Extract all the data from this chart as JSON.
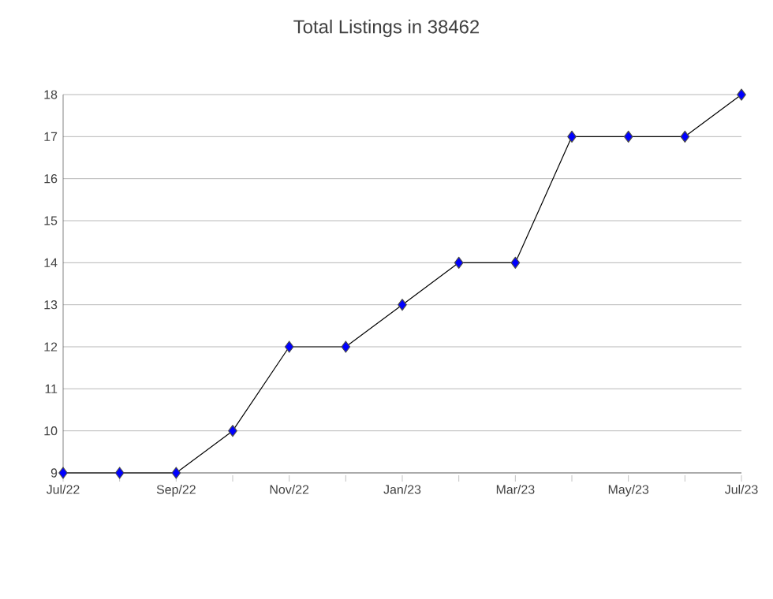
{
  "chart_data": {
    "type": "line",
    "title": "Total Listings in 38462",
    "categories": [
      "Jul/22",
      null,
      "Sep/22",
      null,
      "Nov/22",
      null,
      "Jan/23",
      null,
      "Mar/23",
      null,
      "May/23",
      null,
      "Jul/23"
    ],
    "series": [
      {
        "color": "#000000",
        "values": [
          9,
          9,
          9,
          10,
          12,
          12,
          13,
          14,
          14,
          17,
          17,
          17,
          18
        ]
      }
    ],
    "marker": "diamond",
    "line_style": "solid",
    "ylim": [
      9,
      18
    ],
    "yticks": [
      9,
      10,
      11,
      12,
      13,
      14,
      15,
      16,
      17,
      18
    ],
    "grid": "y"
  }
}
